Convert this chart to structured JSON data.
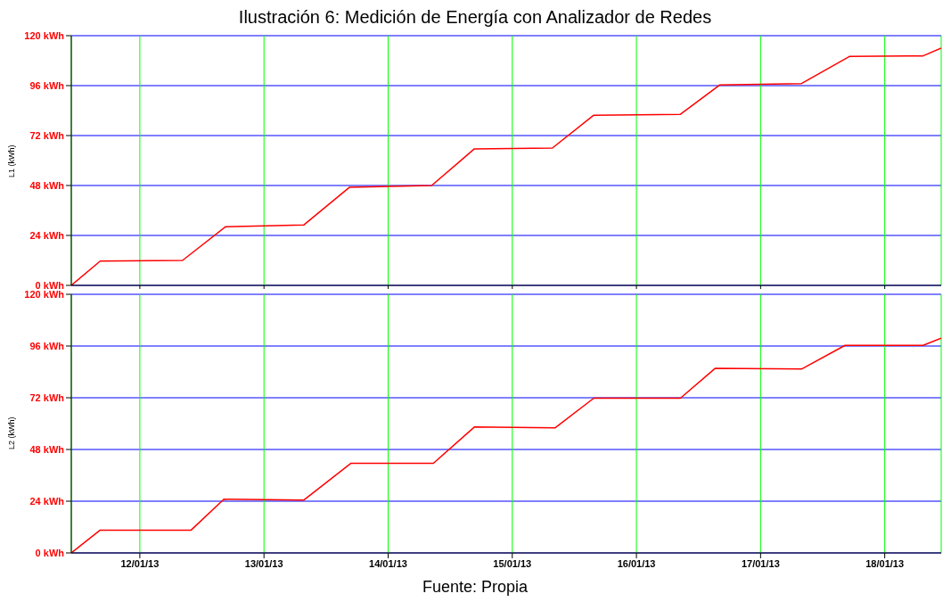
{
  "chart_data": [
    {
      "type": "line",
      "title": "Ilustración 6: Medición de Energía con Analizador de Redes",
      "ylabel": "L1 (kWh)",
      "tick_labels": "y",
      "grid": true,
      "marker": "none",
      "line_style": "solid",
      "x": [
        "--01-11T10:45",
        "--01-11T16:20",
        "--01-12T08:15",
        "--01-12T16:35",
        "--01-13T07:40",
        "--01-13T16:30",
        "--01-14T08:25",
        "--01-14T16:40",
        "--01-15T07:45",
        "--01-15T15:45",
        "--01-16T08:30",
        "--01-16T16:05",
        "--01-17T07:55",
        "--01-17T17:10",
        "--01-18T07:25",
        "--01-18T10:55"
      ],
      "series": [
        {
          "color": "#ff0000",
          "values": [
            0,
            11.7,
            12,
            28.2,
            29,
            47.1,
            48,
            65.6,
            66,
            81.8,
            82.2,
            96.3,
            97,
            110,
            110.3,
            114
          ]
        }
      ],
      "xlim": [
        "--01-11T10:45",
        "--01-18T10:55"
      ],
      "xticks": [
        {
          "value": "--01-12",
          "label": null
        },
        {
          "value": "--01-13",
          "label": null
        },
        {
          "value": "--01-14",
          "label": null
        },
        {
          "value": "--01-15",
          "label": null
        },
        {
          "value": "--01-16",
          "label": null
        },
        {
          "value": "--01-17",
          "label": null
        },
        {
          "value": "--01-18",
          "label": null
        }
      ],
      "ylim": [
        0,
        120
      ],
      "yticks": [
        {
          "value": 0,
          "label": "0 kWh"
        },
        {
          "value": 24,
          "label": "24 kWh"
        },
        {
          "value": 48,
          "label": "48 kWh"
        },
        {
          "value": 72,
          "label": "72 kWh"
        },
        {
          "value": 96,
          "label": "96 kWh"
        },
        {
          "value": 120,
          "label": "120 kWh"
        }
      ]
    },
    {
      "type": "line",
      "ylabel": "L2 (kWh)",
      "grid": true,
      "marker": "none",
      "line_style": "solid",
      "annotations": [
        "Fuente: Propia"
      ],
      "x": [
        "--01-11T10:45",
        "--01-11T16:20",
        "--01-12T09:55",
        "--01-12T16:15",
        "--01-13T07:40",
        "--01-13T16:50",
        "--01-14T08:45",
        "--01-14T16:40",
        "--01-15T08:15",
        "--01-15T15:45",
        "--01-16T08:30",
        "--01-16T15:15",
        "--01-17T07:55",
        "--01-17T16:20",
        "--01-18T07:25",
        "--01-18T10:55"
      ],
      "series": [
        {
          "color": "#ff0000",
          "values": [
            0,
            10.6,
            10.6,
            24.9,
            24.5,
            41.6,
            41.6,
            58.4,
            58,
            71.8,
            71.8,
            85.7,
            85.3,
            96.3,
            96.3,
            99.6
          ]
        }
      ],
      "xlim": [
        "--01-11T10:45",
        "--01-18T10:55"
      ],
      "xticks": [
        {
          "value": "--01-12",
          "label": "12/01/13"
        },
        {
          "value": "--01-13",
          "label": "13/01/13"
        },
        {
          "value": "--01-14",
          "label": "14/01/13"
        },
        {
          "value": "--01-15",
          "label": "15/01/13"
        },
        {
          "value": "--01-16",
          "label": "16/01/13"
        },
        {
          "value": "--01-17",
          "label": "17/01/13"
        },
        {
          "value": "--01-18",
          "label": "18/01/13"
        }
      ],
      "ylim": [
        0,
        120
      ],
      "yticks": [
        {
          "value": 0,
          "label": "0 kWh"
        },
        {
          "value": 24,
          "label": "24 kWh"
        },
        {
          "value": 48,
          "label": "48 kWh"
        },
        {
          "value": 72,
          "label": "72 kWh"
        },
        {
          "value": 96,
          "label": "96 kWh"
        },
        {
          "value": 120,
          "label": "120 kWh"
        }
      ]
    }
  ]
}
